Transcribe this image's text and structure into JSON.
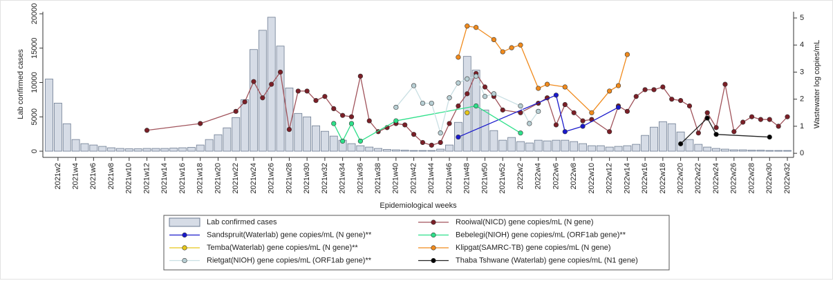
{
  "chart_data": {
    "type": "combo",
    "x_label": "Epidemiological weeks",
    "y_label": "Lab  confirmed cases",
    "y2_label": "Wastewater log copies/mL",
    "categories": [
      null,
      "2021w2",
      null,
      "2021w4",
      null,
      "2021w6",
      null,
      "2021w8",
      null,
      "2021w10",
      null,
      "2021w12",
      null,
      "2021w14",
      null,
      "2021w16",
      null,
      "2021w18",
      null,
      "2021w20",
      null,
      "2021w22",
      null,
      "2021w24",
      null,
      "2021w26",
      null,
      "2021w28",
      null,
      "2021w30",
      null,
      "2021w32",
      null,
      "2021w34",
      null,
      "2021w36",
      null,
      "2021w38",
      null,
      "2021w40",
      null,
      "2021w42",
      null,
      "2021w44",
      null,
      "2021w46",
      null,
      "2021w48",
      null,
      "2021w50",
      null,
      "2021w52",
      null,
      "2022w2",
      null,
      "2022w4",
      null,
      "2022w6",
      null,
      "2022w8",
      null,
      "2022w10",
      null,
      "2022w12",
      null,
      "2022w14",
      null,
      "2022w16",
      null,
      "2022w18",
      null,
      "2022w20",
      null,
      "2022w22",
      null,
      "2022w24",
      null,
      "2022w26",
      null,
      "2022w28",
      null,
      "2022w30",
      null,
      "2022w32"
    ],
    "ylim": [
      -900,
      20300
    ],
    "yticks": [
      0,
      5000,
      10000,
      15000,
      20000
    ],
    "y2lim": [
      -0.15,
      5.23
    ],
    "y2ticks": [
      0,
      1,
      2,
      3,
      4,
      5
    ],
    "series": [
      {
        "name": "Lab  confirmed cases",
        "type": "bar",
        "color": "#d6dce6",
        "edge": "#6b7a90",
        "values": [
          10500,
          7000,
          4000,
          1700,
          1100,
          900,
          700,
          500,
          400,
          350,
          350,
          400,
          400,
          400,
          450,
          500,
          550,
          900,
          1700,
          2400,
          3400,
          4900,
          7500,
          14800,
          17600,
          19500,
          15300,
          9200,
          5500,
          5000,
          3700,
          2900,
          2200,
          1600,
          1100,
          800,
          600,
          400,
          250,
          200,
          150,
          100,
          100,
          100,
          300,
          900,
          4200,
          13800,
          11800,
          6000,
          3000,
          1600,
          2000,
          1400,
          1200,
          1600,
          1500,
          1600,
          1600,
          1400,
          1100,
          800,
          800,
          600,
          700,
          800,
          1000,
          2300,
          3500,
          4300,
          4000,
          2800,
          1700,
          1000,
          600,
          400,
          300,
          200,
          200,
          150,
          150,
          100,
          100,
          100
        ]
      },
      {
        "name": "Rooiwal(NICD) gene copies/mL (N gene)",
        "type": "line",
        "axis": "y2",
        "color": "#a0525a",
        "marker": "#7b1f27",
        "values": [
          null,
          null,
          null,
          null,
          null,
          null,
          null,
          null,
          null,
          null,
          null,
          0.85,
          null,
          null,
          null,
          null,
          null,
          1.1,
          null,
          null,
          null,
          1.55,
          1.9,
          2.65,
          2.05,
          2.55,
          3.0,
          0.88,
          2.3,
          2.3,
          1.95,
          2.1,
          1.65,
          1.4,
          1.35,
          2.85,
          1.2,
          0.8,
          0.95,
          1.1,
          1.05,
          0.7,
          0.4,
          0.3,
          0.4,
          1.1,
          1.75,
          2.2,
          2.95,
          2.45,
          2.1,
          1.6,
          null,
          1.5,
          null,
          1.85,
          2.05,
          1.05,
          1.8,
          1.5,
          1.2,
          1.25,
          null,
          0.8,
          1.75,
          1.55,
          2.1,
          2.35,
          2.35,
          2.45,
          2.0,
          1.95,
          1.75,
          0.75,
          1.5,
          0.95,
          2.55,
          0.8,
          1.15,
          1.35,
          1.25,
          1.25,
          1.0,
          1.35
        ]
      },
      {
        "name": "Sandspruit(Waterlab) gene copies/mL (N gene)**",
        "type": "line",
        "axis": "y2",
        "color": "#1a1acc",
        "marker": "#1a1acc",
        "values": [
          null,
          null,
          null,
          null,
          null,
          null,
          null,
          null,
          null,
          null,
          null,
          null,
          null,
          null,
          null,
          null,
          null,
          null,
          null,
          null,
          null,
          null,
          null,
          null,
          null,
          null,
          null,
          null,
          null,
          null,
          null,
          null,
          null,
          null,
          null,
          null,
          null,
          null,
          null,
          null,
          null,
          null,
          null,
          null,
          null,
          null,
          0.6,
          null,
          null,
          null,
          null,
          null,
          null,
          null,
          null,
          null,
          null,
          2.15,
          0.8,
          null,
          1.0,
          null,
          null,
          null,
          1.7,
          null,
          null,
          null,
          null,
          null,
          null,
          null,
          null,
          null,
          null,
          null,
          null,
          null,
          null,
          null,
          null,
          null,
          null,
          null
        ]
      },
      {
        "name": "Bebelegi(NIOH) gene copies/mL (ORF1ab gene)**",
        "type": "line",
        "axis": "y2",
        "color": "#2ee08a",
        "marker": "#2ee08a",
        "values": [
          null,
          null,
          null,
          null,
          null,
          null,
          null,
          null,
          null,
          null,
          null,
          null,
          null,
          null,
          null,
          null,
          null,
          null,
          null,
          null,
          null,
          null,
          null,
          null,
          null,
          null,
          null,
          null,
          null,
          null,
          null,
          null,
          1.1,
          0.45,
          1.1,
          0.45,
          null,
          null,
          null,
          1.2,
          null,
          null,
          null,
          null,
          null,
          null,
          null,
          null,
          1.75,
          null,
          null,
          null,
          null,
          0.75,
          null,
          null,
          null,
          null,
          null,
          null,
          null,
          null,
          null,
          null,
          null,
          null,
          null,
          null,
          null,
          null,
          null,
          null,
          null,
          null,
          null,
          null,
          null,
          null,
          null,
          null,
          null,
          null,
          null,
          null
        ]
      },
      {
        "name": "Temba(Waterlab) gene copies/mL (N gene)**",
        "type": "line",
        "axis": "y2",
        "color": "#e6c619",
        "marker": "#e6c619",
        "values": [
          null,
          null,
          null,
          null,
          null,
          null,
          null,
          null,
          null,
          null,
          null,
          null,
          null,
          null,
          null,
          null,
          null,
          null,
          null,
          null,
          null,
          null,
          null,
          null,
          null,
          null,
          null,
          null,
          null,
          null,
          null,
          null,
          null,
          null,
          null,
          null,
          null,
          null,
          null,
          null,
          null,
          null,
          null,
          null,
          null,
          null,
          null,
          1.5,
          null,
          null,
          null,
          null,
          null,
          null,
          null,
          null,
          null,
          null,
          null,
          null,
          null,
          null,
          null,
          null,
          null,
          null,
          null,
          null,
          null,
          null,
          null,
          null,
          null,
          null,
          null,
          null,
          null,
          null,
          null,
          null,
          null,
          null,
          null,
          null
        ]
      },
      {
        "name": "Klipgat(SAMRC-TB) gene copies/mL (N gene)",
        "type": "line",
        "axis": "y2",
        "color": "#f08a1c",
        "marker": "#f08a1c",
        "values": [
          null,
          null,
          null,
          null,
          null,
          null,
          null,
          null,
          null,
          null,
          null,
          null,
          null,
          null,
          null,
          null,
          null,
          null,
          null,
          null,
          null,
          null,
          null,
          null,
          null,
          null,
          null,
          null,
          null,
          null,
          null,
          null,
          null,
          null,
          null,
          null,
          null,
          null,
          null,
          null,
          null,
          null,
          null,
          null,
          null,
          null,
          3.55,
          4.7,
          4.65,
          null,
          4.2,
          3.75,
          3.9,
          4.0,
          null,
          2.4,
          2.55,
          null,
          2.45,
          null,
          null,
          1.5,
          null,
          2.3,
          2.5,
          3.65,
          null,
          null,
          null,
          null,
          null,
          null,
          null,
          null,
          null,
          null,
          null,
          null,
          null,
          null,
          null,
          null,
          null,
          null
        ]
      },
      {
        "name": "Rietgat(NIOH) gene copies/mL (ORF1ab gene)**",
        "type": "line",
        "axis": "y2",
        "color": "#c9dfe3",
        "marker": "#b8cfd4",
        "values": [
          null,
          null,
          null,
          null,
          null,
          null,
          null,
          null,
          null,
          null,
          null,
          null,
          null,
          null,
          null,
          null,
          null,
          null,
          null,
          null,
          null,
          null,
          null,
          null,
          null,
          null,
          null,
          null,
          null,
          null,
          null,
          null,
          null,
          null,
          null,
          null,
          null,
          null,
          null,
          1.7,
          null,
          2.5,
          1.85,
          1.85,
          0.75,
          2.05,
          2.6,
          2.75,
          2.85,
          2.1,
          2.2,
          null,
          null,
          1.75,
          1.1,
          1.55,
          null,
          null,
          null,
          null,
          null,
          null,
          null,
          null,
          null,
          null,
          null,
          null,
          null,
          null,
          null,
          null,
          null,
          null,
          null,
          null,
          null,
          null,
          null,
          null,
          null,
          null,
          null,
          null
        ]
      },
      {
        "name": "Thaba Tshwane (Waterlab) gene copies/mL (N1 gene)",
        "type": "line",
        "axis": "y2",
        "color": "#222222",
        "marker": "#000000",
        "values": [
          null,
          null,
          null,
          null,
          null,
          null,
          null,
          null,
          null,
          null,
          null,
          null,
          null,
          null,
          null,
          null,
          null,
          null,
          null,
          null,
          null,
          null,
          null,
          null,
          null,
          null,
          null,
          null,
          null,
          null,
          null,
          null,
          null,
          null,
          null,
          null,
          null,
          null,
          null,
          null,
          null,
          null,
          null,
          null,
          null,
          null,
          null,
          null,
          null,
          null,
          null,
          null,
          null,
          null,
          null,
          null,
          null,
          null,
          null,
          null,
          null,
          null,
          null,
          null,
          null,
          null,
          null,
          null,
          null,
          null,
          null,
          0.35,
          null,
          null,
          1.3,
          0.7,
          null,
          null,
          null,
          null,
          null,
          0.6,
          null,
          null
        ]
      }
    ]
  }
}
